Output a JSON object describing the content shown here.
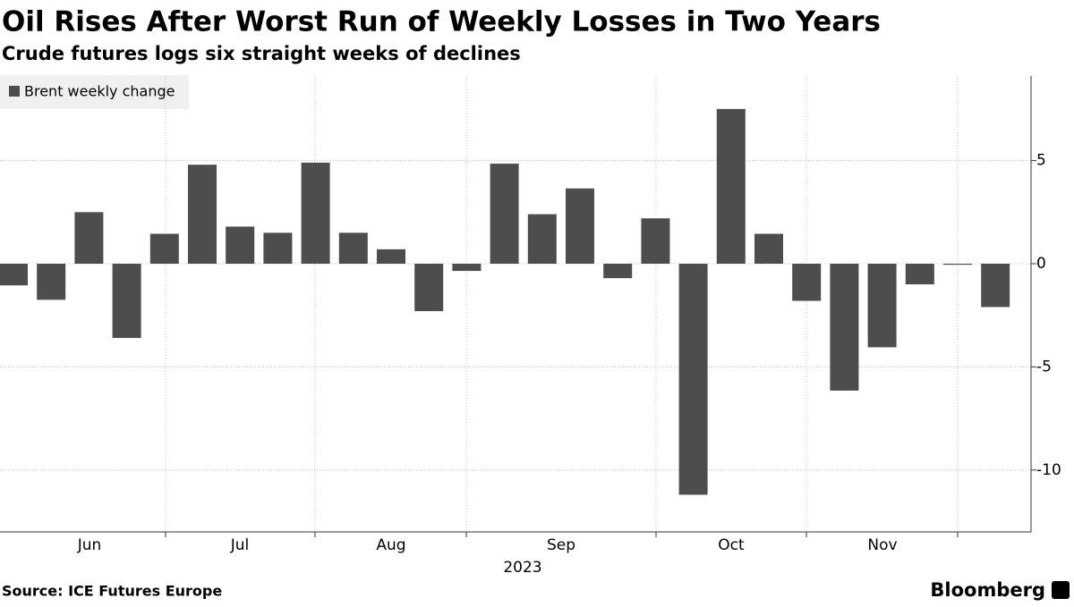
{
  "chart_data": {
    "type": "bar",
    "title": "Oil Rises After Worst Run of Weekly Losses in Two Years",
    "subtitle": "Crude futures logs six straight weeks of declines",
    "series": [
      {
        "name": "Brent weekly change",
        "color": "#4d4d4d",
        "values": [
          -1.05,
          -1.75,
          2.5,
          -3.6,
          1.45,
          4.8,
          1.8,
          1.5,
          4.9,
          1.5,
          0.7,
          -2.3,
          -0.35,
          4.85,
          2.4,
          3.65,
          -0.7,
          2.2,
          -11.2,
          7.5,
          1.45,
          -1.8,
          -6.15,
          -4.05,
          -1.0,
          -0.05,
          -2.1
        ]
      }
    ],
    "categories": [
      null,
      null,
      null,
      null,
      null,
      null,
      null,
      null,
      null,
      null,
      null,
      null,
      null,
      null,
      null,
      null,
      null,
      null,
      null,
      null,
      null,
      null,
      null,
      null,
      null,
      null,
      null
    ],
    "x_months": [
      "Jun",
      "Jul",
      "Aug",
      "Sep",
      "Oct",
      "Nov"
    ],
    "x_year": "2023",
    "ylim": [
      -13,
      9.1
    ],
    "yticks": [
      5,
      0,
      -5,
      -10
    ],
    "grid": true,
    "source": "Source: ICE Futures Europe",
    "brand": "Bloomberg"
  }
}
